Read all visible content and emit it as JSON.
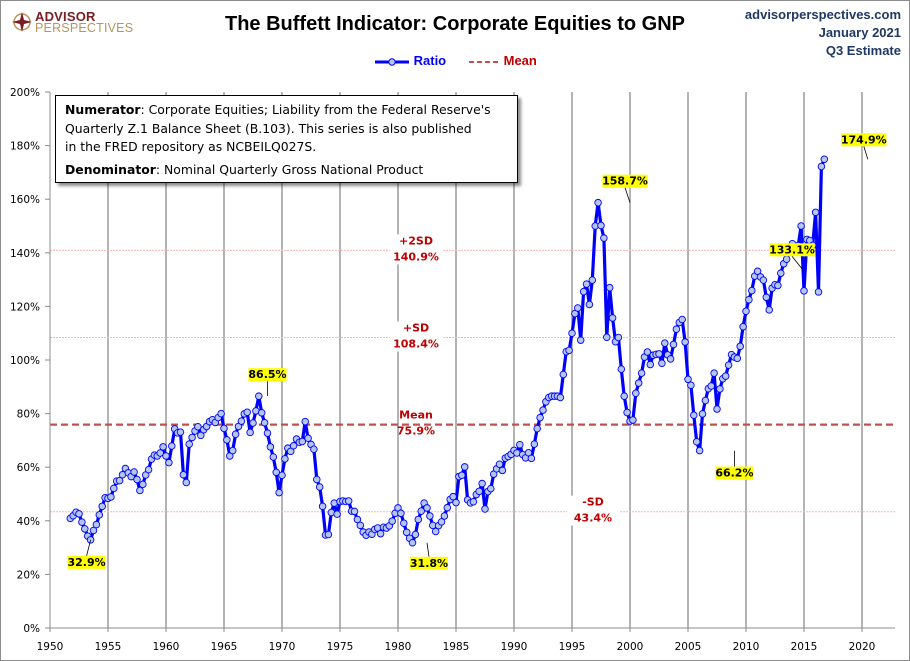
{
  "header": {
    "logo_top": "ADVISOR",
    "logo_bottom": "PERSPECTIVES",
    "title": "The Buffett Indicator: Corporate Equities to GNP",
    "source_lines": [
      "advisorperspectives.com",
      "January 2021",
      "Q3 Estimate"
    ]
  },
  "legend": {
    "ratio_label": "Ratio",
    "mean_label": "Mean"
  },
  "note": {
    "numerator_label": "Numerator",
    "numerator_text": ": Corporate Equities; Liability from the Federal Reserve's",
    "numerator_line2": "Quarterly Z.1 Balance Sheet (B.103). This series is also published",
    "numerator_line3": "in the FRED repository  as NCBEILQ027S.",
    "denominator_label": "Denominator",
    "denominator_text": ": Nominal Quarterly Gross National Product"
  },
  "colors": {
    "ratio_line": "#0000ff",
    "ratio_marker_fill": "#b4c7f0",
    "mean_line": "#c0504d",
    "sd_line": "#f2b8b8",
    "sd_label": "#c00000",
    "annotation_bg": "#ffff00",
    "gridline": "#8c8c8c"
  },
  "chart_data": {
    "type": "line",
    "title": "The Buffett Indicator: Corporate Equities to GNP",
    "xlabel": "",
    "ylabel": "",
    "xlim": [
      1950,
      2023.5
    ],
    "ylim": [
      0,
      200
    ],
    "x_ticks": [
      1950,
      1955,
      1960,
      1965,
      1970,
      1975,
      1980,
      1985,
      1990,
      1995,
      2000,
      2005,
      2010,
      2015,
      2020
    ],
    "y_ticks": [
      "0%",
      "20%",
      "40%",
      "60%",
      "80%",
      "100%",
      "120%",
      "140%",
      "160%",
      "180%",
      "200%"
    ],
    "y_tick_values": [
      0,
      20,
      40,
      60,
      80,
      100,
      120,
      140,
      160,
      180,
      200
    ],
    "grid": "vertical",
    "legend_position": "top-center",
    "reference_lines": [
      {
        "name": "+2SD",
        "value": 140.9,
        "label": "+2SD",
        "value_label": "140.9%"
      },
      {
        "name": "+SD",
        "value": 108.4,
        "label": "+SD",
        "value_label": "108.4%"
      },
      {
        "name": "Mean",
        "value": 75.9,
        "label": "Mean",
        "value_label": "75.9%"
      },
      {
        "name": "-SD",
        "value": 43.4,
        "label": "-SD",
        "value_label": "43.4%"
      }
    ],
    "annotations": [
      {
        "x": 1953.5,
        "y": 32.9,
        "label": "32.9%"
      },
      {
        "x": 1968.75,
        "y": 86.5,
        "label": "86.5%"
      },
      {
        "x": 1982.5,
        "y": 31.8,
        "label": "31.8%"
      },
      {
        "x": 2000.0,
        "y": 158.7,
        "label": "158.7%"
      },
      {
        "x": 2009.0,
        "y": 66.2,
        "label": "66.2%"
      },
      {
        "x": 2015.0,
        "y": 133.1,
        "label": "133.1%"
      },
      {
        "x": 2020.5,
        "y": 174.9,
        "label": "174.9%"
      }
    ],
    "series": [
      {
        "name": "Ratio",
        "x_start": 1951.75,
        "x_step": 0.25,
        "values": [
          40.9,
          41.9,
          43.2,
          42.6,
          39.5,
          37.0,
          34.3,
          32.9,
          36.4,
          38.6,
          42.2,
          45.4,
          48.6,
          48.4,
          48.9,
          52.1,
          54.8,
          55.0,
          57.2,
          59.5,
          57.9,
          56.5,
          58.2,
          55.4,
          51.3,
          53.6,
          57.1,
          59.1,
          63.0,
          64.5,
          64.2,
          65.3,
          67.6,
          64.2,
          61.7,
          67.9,
          74.3,
          72.8,
          73.1,
          57.2,
          54.3,
          68.6,
          71.1,
          73.5,
          75.1,
          71.9,
          74.0,
          75.2,
          77.0,
          77.7,
          76.7,
          78.5,
          80.0,
          74.5,
          70.2,
          64.2,
          66.2,
          72.3,
          75.2,
          77.2,
          79.9,
          80.5,
          73.0,
          76.5,
          81.0,
          86.5,
          80.3,
          76.6,
          72.7,
          67.6,
          63.8,
          58.1,
          50.5,
          57.0,
          63.1,
          67.1,
          65.9,
          68.0,
          70.5,
          69.3,
          69.6,
          77.0,
          70.8,
          68.5,
          66.7,
          55.4,
          52.6,
          45.4,
          34.7,
          34.9,
          43.1,
          46.6,
          42.5,
          47.2,
          47.4,
          47.2,
          47.4,
          43.6,
          43.5,
          40.5,
          38.3,
          35.8,
          34.6,
          35.8,
          35.0,
          36.8,
          37.3,
          35.2,
          37.6,
          37.3,
          38.1,
          39.9,
          42.8,
          44.8,
          42.8,
          39.1,
          35.7,
          33.5,
          31.8,
          34.9,
          40.5,
          43.6,
          46.6,
          44.8,
          41.8,
          38.3,
          36.0,
          38.2,
          39.6,
          41.8,
          44.9,
          48.0,
          49.0,
          46.8,
          56.5,
          57.0,
          60.1,
          47.8,
          46.7,
          47.1,
          49.8,
          51.0,
          53.9,
          44.4,
          50.9,
          52.0,
          57.4,
          59.4,
          61.1,
          58.8,
          63.4,
          64.0,
          64.8,
          66.3,
          65.3,
          68.4,
          64.7,
          63.5,
          65.4,
          63.3,
          68.6,
          74.4,
          78.5,
          81.3,
          84.4,
          86.0,
          86.5,
          86.5,
          86.5,
          86.0,
          94.6,
          103.1,
          103.6,
          110.0,
          117.3,
          119.4,
          107.4,
          125.5,
          128.3,
          120.7,
          129.8,
          150.0,
          158.7,
          150.2,
          145.5,
          108.5,
          127.0,
          115.7,
          106.8,
          108.4,
          96.6,
          86.5,
          80.4,
          77.2,
          77.6,
          87.6,
          91.4,
          95.1,
          101.1,
          103.0,
          98.3,
          101.8,
          102.1,
          102.3,
          98.8,
          106.3,
          101.9,
          100.4,
          105.8,
          111.5,
          114.0,
          115.1,
          106.7,
          92.8,
          90.6,
          79.4,
          69.5,
          66.2,
          79.9,
          84.9,
          89.3,
          90.3,
          95.1,
          81.7,
          89.2,
          93.0,
          94.0,
          98.1,
          102.0,
          101.1,
          100.6,
          105.1,
          112.4,
          118.2,
          122.5,
          125.9,
          131.3,
          133.1,
          131.0,
          129.8,
          123.4,
          118.7,
          126.8,
          128.1,
          127.8,
          132.4,
          135.9,
          137.6,
          140.4,
          143.4,
          140.6,
          142.7,
          150.0,
          125.8,
          145.0,
          144.6,
          142.8,
          155.1,
          125.4,
          172.2,
          174.9
        ]
      },
      {
        "name": "Mean",
        "value": 75.9
      }
    ]
  }
}
